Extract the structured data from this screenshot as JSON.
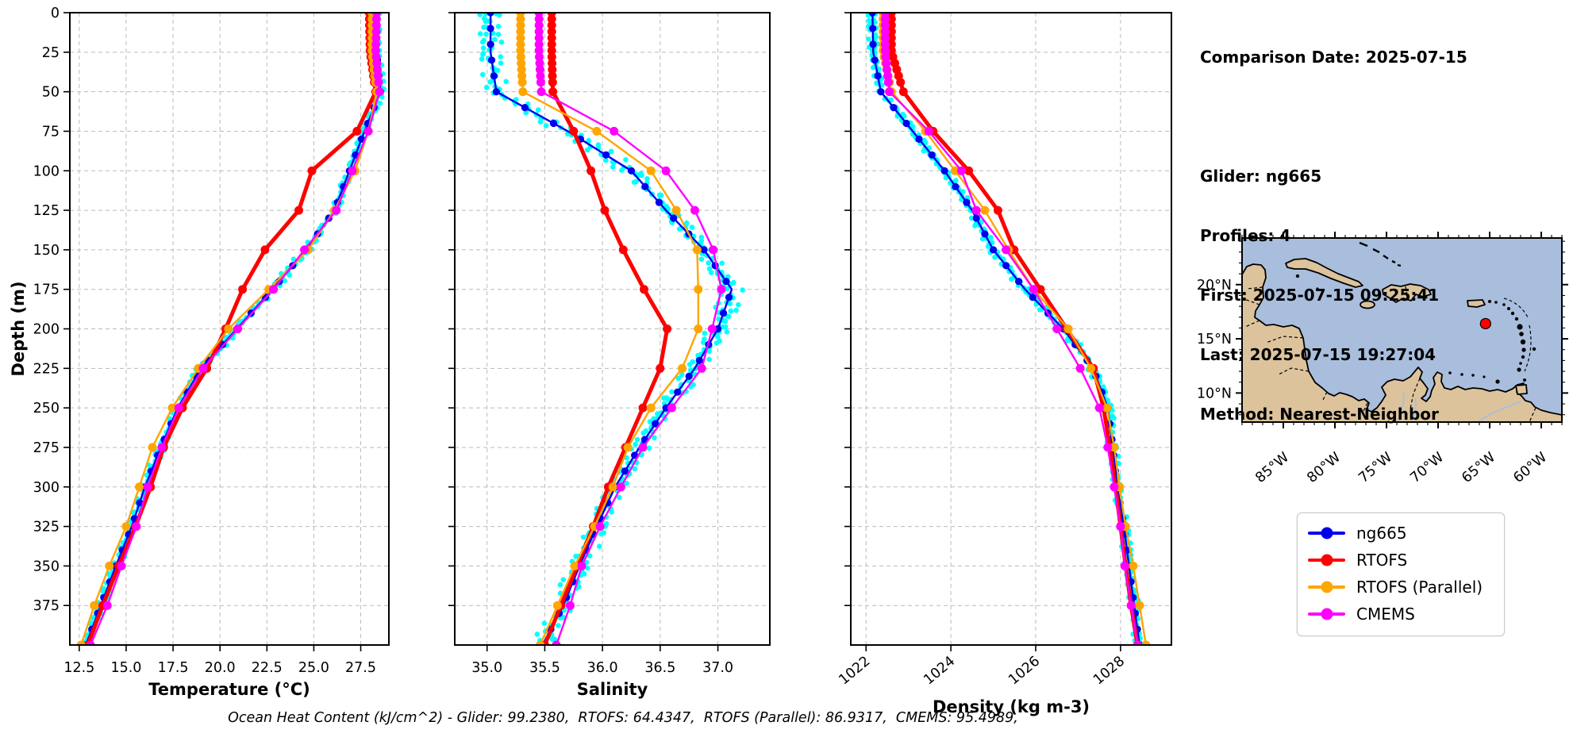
{
  "info": {
    "comparison_date": "Comparison Date: 2025-07-15",
    "glider": "Glider: ng665",
    "profiles": "Profiles: 4",
    "first": "First: 2025-07-15 09:25:41",
    "last": "Last: 2025-07-15 19:27:04",
    "method": "Method: Nearest-Neighbor"
  },
  "footer": {
    "ohc_annotation": "Ocean Heat Content (kJ/cm^2) - Glider: 99.2380,  RTOFS: 64.4347,  RTOFS (Parallel): 86.9317,  CMEMS: 95.4989,"
  },
  "legend": {
    "entries": [
      {
        "label": "ng665",
        "color": "#0000ee"
      },
      {
        "label": "RTOFS",
        "color": "#ff0000"
      },
      {
        "label": "RTOFS (Parallel)",
        "color": "#ffa500"
      },
      {
        "label": "CMEMS",
        "color": "#ff00ff"
      }
    ]
  },
  "colors": {
    "glider_scatter": "#00ffff",
    "grid": "#bbbbbb",
    "spine": "#000000",
    "map_sea": "#a9bedd",
    "map_land": "#dcc39c",
    "map_coast": "#000000",
    "glider_dot": "#ff0000"
  },
  "depth_axis": {
    "label": "Depth (m)",
    "min": 0,
    "max": 400,
    "tick_step": 25,
    "tick_labels": [
      "0",
      "25",
      "50",
      "75",
      "100",
      "125",
      "150",
      "175",
      "200",
      "225",
      "250",
      "275",
      "300",
      "325",
      "350",
      "375"
    ]
  },
  "chart_data": [
    {
      "type": "line",
      "title": "",
      "xlabel": "Temperature (°C)",
      "ylabel": "Depth (m)",
      "xlim": [
        12.0,
        29.0
      ],
      "ylim": [
        0,
        400
      ],
      "grid": true,
      "legend_position": "separate-box",
      "xticks": [
        12.5,
        15.0,
        17.5,
        20.0,
        22.5,
        25.0,
        27.5
      ],
      "xtick_labels": [
        "12.5",
        "15.0",
        "17.5",
        "20.0",
        "22.5",
        "25.0",
        "27.5"
      ],
      "rotate_xtick_labels": false,
      "depths": [
        0,
        25,
        50,
        75,
        100,
        125,
        150,
        175,
        200,
        225,
        250,
        275,
        300,
        325,
        350,
        375,
        400
      ],
      "series": [
        {
          "name": "ng665",
          "color": "#0000ee",
          "line_width": 2.4,
          "marker_radius": 4.6,
          "marker_preset": "every10",
          "values": [
            28.3,
            28.35,
            28.55,
            27.7,
            26.9,
            26.1,
            24.6,
            22.8,
            20.9,
            19.0,
            17.75,
            16.85,
            16.0,
            15.3,
            14.45,
            13.65,
            12.85
          ]
        },
        {
          "name": "RTOFS",
          "color": "#ff0000",
          "line_width": 5.0,
          "marker_radius": 5.5,
          "marker_preset": "model",
          "values": [
            27.95,
            28.0,
            28.3,
            27.3,
            24.9,
            24.2,
            22.4,
            21.2,
            20.3,
            19.3,
            18.0,
            17.0,
            16.3,
            15.5,
            14.6,
            13.75,
            12.95
          ]
        },
        {
          "name": "RTOFS (Parallel)",
          "color": "#ffa500",
          "line_width": 2.4,
          "marker_radius": 5.5,
          "marker_preset": "model",
          "values": [
            28.1,
            28.1,
            28.35,
            27.9,
            27.2,
            26.1,
            24.7,
            22.6,
            20.45,
            18.85,
            17.45,
            16.4,
            15.7,
            15.0,
            14.1,
            13.3,
            12.6
          ]
        },
        {
          "name": "CMEMS",
          "color": "#ff00ff",
          "line_width": 2.4,
          "marker_radius": 5.5,
          "marker_preset": "model",
          "values": [
            28.35,
            28.3,
            28.5,
            27.9,
            27.05,
            26.2,
            24.5,
            22.85,
            20.95,
            19.1,
            17.8,
            16.9,
            16.15,
            15.55,
            14.75,
            14.0,
            13.1
          ]
        }
      ],
      "scatter": {
        "name": "glider raw profiles",
        "color": "#00ffff",
        "profile_offsets": [
          -0.5,
          -0.15,
          0.18,
          0.5
        ],
        "offset_scale": 0.22,
        "noise": 0.15
      }
    },
    {
      "type": "line",
      "title": "",
      "xlabel": "Salinity",
      "ylabel": "Depth (m)",
      "xlim": [
        34.72,
        37.45
      ],
      "ylim": [
        0,
        400
      ],
      "grid": true,
      "xticks": [
        35.0,
        35.5,
        36.0,
        36.5,
        37.0
      ],
      "xtick_labels": [
        "35.0",
        "35.5",
        "36.0",
        "36.5",
        "37.0"
      ],
      "rotate_xtick_labels": false,
      "depths": [
        0,
        25,
        50,
        75,
        100,
        125,
        150,
        175,
        200,
        225,
        250,
        275,
        300,
        325,
        350,
        375,
        400
      ],
      "series": [
        {
          "name": "ng665",
          "color": "#0000ee",
          "line_width": 2.4,
          "marker_radius": 4.6,
          "marker_preset": "every10",
          "values": [
            35.03,
            35.03,
            35.08,
            35.7,
            36.25,
            36.55,
            36.88,
            37.12,
            37.0,
            36.8,
            36.55,
            36.32,
            36.11,
            35.95,
            35.8,
            35.66,
            35.48
          ]
        },
        {
          "name": "RTOFS",
          "color": "#ff0000",
          "line_width": 5.0,
          "marker_radius": 5.5,
          "marker_preset": "model",
          "values": [
            35.56,
            35.56,
            35.57,
            35.75,
            35.9,
            36.02,
            36.18,
            36.36,
            36.56,
            36.5,
            36.35,
            36.2,
            36.05,
            35.92,
            35.78,
            35.64,
            35.5
          ]
        },
        {
          "name": "RTOFS (Parallel)",
          "color": "#ffa500",
          "line_width": 2.4,
          "marker_radius": 5.5,
          "marker_preset": "model",
          "values": [
            35.29,
            35.29,
            35.31,
            35.95,
            36.42,
            36.64,
            36.82,
            36.83,
            36.83,
            36.69,
            36.42,
            36.22,
            36.09,
            35.93,
            35.76,
            35.61,
            35.46
          ]
        },
        {
          "name": "CMEMS",
          "color": "#ff00ff",
          "line_width": 2.4,
          "marker_radius": 5.5,
          "marker_preset": "model",
          "values": [
            35.45,
            35.45,
            35.47,
            36.1,
            36.55,
            36.8,
            36.96,
            37.03,
            36.95,
            36.86,
            36.6,
            36.35,
            36.16,
            35.98,
            35.82,
            35.72,
            35.6
          ]
        }
      ],
      "scatter": {
        "name": "glider raw profiles",
        "color": "#00ffff",
        "profile_offsets": [
          -0.5,
          -0.15,
          0.18,
          0.5
        ],
        "offset_scale": 0.09,
        "noise": 0.06
      }
    },
    {
      "type": "line",
      "title": "",
      "xlabel": "Density (kg m-3)",
      "ylabel": "Depth (m)",
      "xlim": [
        1021.64,
        1029.2
      ],
      "ylim": [
        0,
        400
      ],
      "grid": true,
      "xticks": [
        1022,
        1024,
        1026,
        1028
      ],
      "xtick_labels": [
        "1022",
        "1024",
        "1026",
        "1028"
      ],
      "rotate_xtick_labels": true,
      "depths": [
        0,
        25,
        50,
        75,
        100,
        125,
        150,
        175,
        200,
        225,
        250,
        275,
        300,
        325,
        350,
        375,
        400
      ],
      "series": [
        {
          "name": "ng665",
          "color": "#0000ee",
          "line_width": 2.4,
          "marker_radius": 4.6,
          "marker_preset": "every10",
          "values": [
            1022.15,
            1022.17,
            1022.35,
            1023.1,
            1023.85,
            1024.5,
            1025.0,
            1025.75,
            1026.65,
            1027.35,
            1027.7,
            1027.82,
            1027.92,
            1028.08,
            1028.2,
            1028.32,
            1028.45
          ]
        },
        {
          "name": "RTOFS",
          "color": "#ff0000",
          "line_width": 5.0,
          "marker_radius": 5.5,
          "marker_preset": "model",
          "values": [
            1022.6,
            1022.6,
            1022.88,
            1023.58,
            1024.42,
            1025.11,
            1025.49,
            1026.11,
            1026.73,
            1027.36,
            1027.6,
            1027.75,
            1027.88,
            1028.0,
            1028.12,
            1028.25,
            1028.4
          ]
        },
        {
          "name": "RTOFS (Parallel)",
          "color": "#ffa500",
          "line_width": 2.4,
          "marker_radius": 5.5,
          "marker_preset": "model",
          "values": [
            1022.4,
            1022.4,
            1022.6,
            1023.4,
            1024.1,
            1024.8,
            1025.36,
            1025.95,
            1026.77,
            1027.3,
            1027.68,
            1027.85,
            1027.98,
            1028.12,
            1028.3,
            1028.45,
            1028.6
          ]
        },
        {
          "name": "CMEMS",
          "color": "#ff00ff",
          "line_width": 2.4,
          "marker_radius": 5.5,
          "marker_preset": "model",
          "values": [
            1022.45,
            1022.45,
            1022.55,
            1023.48,
            1024.25,
            1024.6,
            1025.3,
            1025.95,
            1026.5,
            1027.05,
            1027.5,
            1027.7,
            1027.85,
            1028.0,
            1028.1,
            1028.25,
            1028.4
          ]
        }
      ],
      "scatter": {
        "name": "glider raw profiles",
        "color": "#00ffff",
        "profile_offsets": [
          -0.5,
          -0.15,
          0.18,
          0.5
        ],
        "offset_scale": 0.1,
        "noise": 0.07
      }
    }
  ],
  "map": {
    "extent": {
      "lon_min": -89,
      "lon_max": -58,
      "lat_min": 7.32,
      "lat_max": 24.3
    },
    "lon_ticks": [
      {
        "value": -85,
        "label": "85°W"
      },
      {
        "value": -80,
        "label": "80°W"
      },
      {
        "value": -75,
        "label": "75°W"
      },
      {
        "value": -70,
        "label": "70°W"
      },
      {
        "value": -65,
        "label": "65°W"
      },
      {
        "value": -60,
        "label": "60°W"
      }
    ],
    "lat_ticks": [
      {
        "value": 20,
        "label": "20°N"
      },
      {
        "value": 15,
        "label": "15°N"
      },
      {
        "value": 10,
        "label": "10°N"
      }
    ],
    "minor_tick_step_deg": 1,
    "glider_location": {
      "lon": -65.4,
      "lat": 16.4
    }
  }
}
